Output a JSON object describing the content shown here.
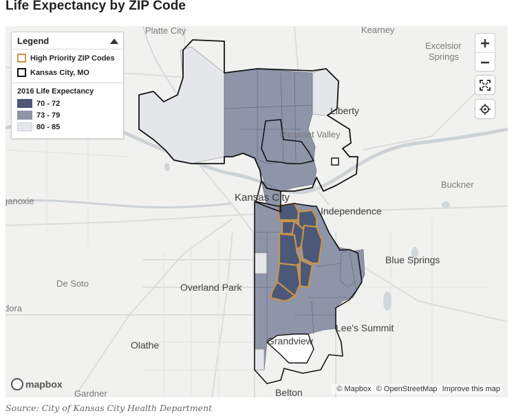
{
  "title": "Life Expectancy by ZIP Code",
  "legend": {
    "heading": "Legend",
    "outlines": [
      {
        "label": "High Priority ZIP Codes",
        "color": "#c8944a"
      },
      {
        "label": "Kansas City, MO",
        "color": "#111111"
      }
    ],
    "subtitle": "2016 Life Expectancy",
    "classes": [
      {
        "label": "70 - 72",
        "color": "#4b5878"
      },
      {
        "label": "73 - 79",
        "color": "#8e95a8"
      },
      {
        "label": "80 - 85",
        "color": "#e4e6ea"
      }
    ]
  },
  "places": {
    "platte_city": "Platte City",
    "kearney": "Kearney",
    "excelsior_springs_1": "Excelsior",
    "excelsior_springs_2": "Springs",
    "liberty": "Liberty",
    "pleasant_valley": "Pleasant Valley",
    "ganoxie": "ganoxie",
    "buckner": "Buckner",
    "kansas_city": "Kansas City",
    "independence": "Independence",
    "blue_springs": "Blue Springs",
    "de_soto": "De Soto",
    "overland_park": "Overland Park",
    "dora": "dora",
    "lees_summit": "Lee's Summit",
    "grandview": "Grandview",
    "olathe": "Olathe",
    "gardner": "Gardner",
    "belton": "Belton"
  },
  "map_controls": {
    "zoom_in": "+",
    "zoom_out": "−"
  },
  "brand": "mapbox",
  "attribution": {
    "mapbox": "© Mapbox",
    "osm": "© OpenStreetMap",
    "improve": "Improve this map"
  },
  "source": "Source: City of Kansas City Health Department"
}
